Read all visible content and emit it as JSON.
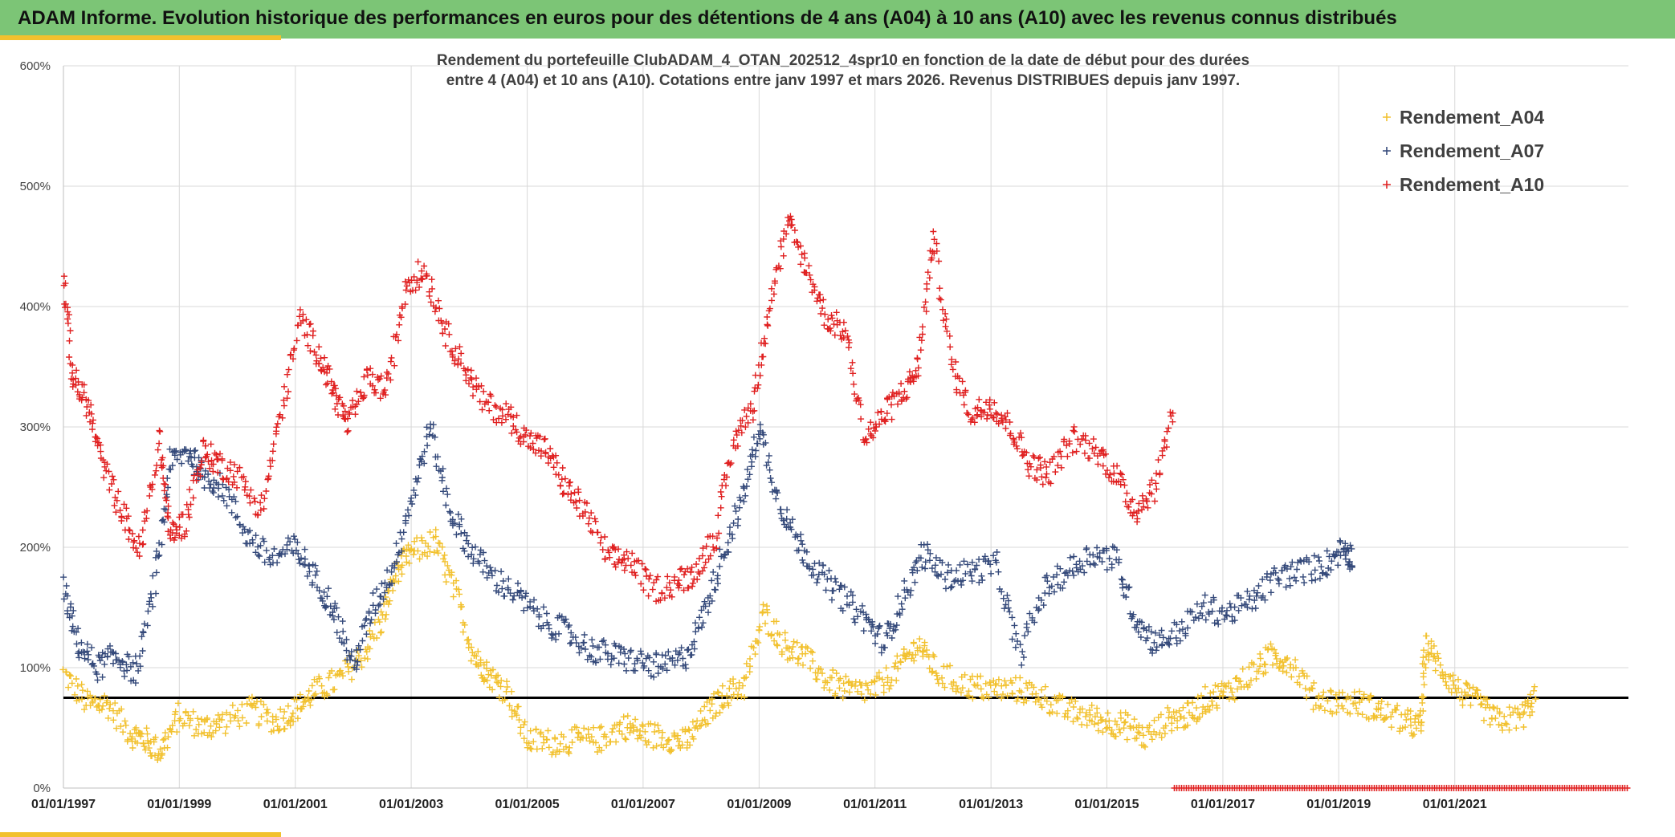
{
  "header": {
    "title": "ADAM Informe. Evolution historique des performances en euros pour des détentions de 4 ans (A04) à 10 ans (A10) avec les revenus connus distribués"
  },
  "chart_data": {
    "type": "scatter",
    "title_lines": [
      "Rendement du portefeuille ClubADAM_4_OTAN_202512_4spr10  en fonction de la date de début pour des durées",
      "entre 4 (A04) et 10 ans (A10). Cotations entre janv 1997 et mars 2026. Revenus DISTRIBUES depuis janv 1997."
    ],
    "xlabel": "",
    "ylabel": "",
    "x_range": [
      "1997-01-01",
      "2023-12-31"
    ],
    "ylim": [
      0,
      600
    ],
    "y_ticks": [
      "0%",
      "100%",
      "200%",
      "300%",
      "400%",
      "500%",
      "600%"
    ],
    "x_ticks": [
      "01/01/1997",
      "01/01/1999",
      "01/01/2001",
      "01/01/2003",
      "01/01/2005",
      "01/01/2007",
      "01/01/2009",
      "01/01/2011",
      "01/01/2013",
      "01/01/2015",
      "01/01/2017",
      "01/01/2019",
      "01/01/2021"
    ],
    "grid": true,
    "legend_position": "top-right",
    "reference_line": {
      "y": 75,
      "color": "#000000"
    },
    "marker": "+",
    "series": [
      {
        "name": "Rendement_A04",
        "color": "#f2c12e",
        "x_end": "2022-06-01",
        "x": [
          "1997-01",
          "1997-06",
          "1997-10",
          "1998-03",
          "1998-06",
          "1998-09",
          "1999-01",
          "1999-06",
          "1999-10",
          "2000-04",
          "2000-09",
          "2001-01",
          "2001-05",
          "2001-10",
          "2002-03",
          "2002-07",
          "2002-10",
          "2003-01",
          "2003-06",
          "2003-10",
          "2004-02",
          "2004-05",
          "2004-09",
          "2005-01",
          "2005-06",
          "2005-11",
          "2006-04",
          "2006-09",
          "2007-01",
          "2007-06",
          "2007-10",
          "2008-02",
          "2008-06",
          "2008-10",
          "2009-02",
          "2009-06",
          "2009-10",
          "2010-03",
          "2010-08",
          "2011-01",
          "2011-06",
          "2011-10",
          "2012-02",
          "2012-08",
          "2013-01",
          "2013-06",
          "2013-11",
          "2014-04",
          "2014-09",
          "2015-01",
          "2015-05",
          "2015-09",
          "2016-02",
          "2016-06",
          "2016-10",
          "2017-02",
          "2017-07",
          "2017-11",
          "2018-03",
          "2018-08",
          "2019-01",
          "2019-06",
          "2019-10",
          "2020-03",
          "2020-06",
          "2020-07",
          "2020-10",
          "2021-02",
          "2021-06",
          "2021-10",
          "2022-03",
          "2022-06"
        ],
        "y": [
          95,
          70,
          70,
          45,
          40,
          30,
          60,
          50,
          55,
          65,
          55,
          65,
          80,
          90,
          110,
          140,
          180,
          195,
          205,
          165,
          110,
          95,
          80,
          40,
          38,
          40,
          40,
          52,
          45,
          42,
          38,
          60,
          78,
          85,
          145,
          120,
          110,
          90,
          80,
          82,
          100,
          120,
          95,
          85,
          82,
          82,
          78,
          65,
          60,
          55,
          52,
          42,
          58,
          60,
          75,
          80,
          95,
          110,
          105,
          75,
          72,
          70,
          63,
          55,
          50,
          120,
          100,
          80,
          70,
          55,
          60,
          78
        ]
      },
      {
        "name": "Rendement_A07",
        "color": "#34497a",
        "x_end": "2019-04-01",
        "x": [
          "1997-01",
          "1997-04",
          "1997-08",
          "1997-12",
          "1998-04",
          "1998-08",
          "1998-11",
          "1999-03",
          "1999-06",
          "1999-10",
          "2000-03",
          "2000-08",
          "2001-01",
          "2001-05",
          "2001-09",
          "2002-01",
          "2002-05",
          "2002-09",
          "2003-01",
          "2003-05",
          "2003-09",
          "2004-01",
          "2004-06",
          "2004-11",
          "2005-04",
          "2005-09",
          "2006-02",
          "2006-07",
          "2006-12",
          "2007-05",
          "2007-10",
          "2008-02",
          "2008-06",
          "2008-10",
          "2009-01",
          "2009-05",
          "2009-09",
          "2010-01",
          "2010-06",
          "2010-11",
          "2011-03",
          "2011-07",
          "2011-11",
          "2012-04",
          "2012-09",
          "2013-02",
          "2013-07",
          "2013-12",
          "2014-05",
          "2014-10",
          "2015-03",
          "2015-07",
          "2015-11",
          "2016-04",
          "2016-09",
          "2017-02",
          "2017-07",
          "2017-12",
          "2018-05",
          "2018-10",
          "2019-02",
          "2019-04"
        ],
        "y": [
          165,
          120,
          100,
          110,
          95,
          170,
          270,
          280,
          260,
          250,
          210,
          190,
          200,
          175,
          150,
          100,
          150,
          180,
          240,
          300,
          230,
          200,
          175,
          160,
          140,
          130,
          115,
          110,
          105,
          100,
          110,
          150,
          200,
          245,
          300,
          240,
          205,
          180,
          160,
          140,
          120,
          160,
          195,
          175,
          180,
          185,
          110,
          165,
          180,
          195,
          190,
          140,
          120,
          130,
          150,
          145,
          155,
          175,
          180,
          185,
          200,
          190
        ]
      },
      {
        "name": "Rendement_A10",
        "color": "#e02020",
        "x_end": "2016-03-01",
        "x": [
          "1997-01",
          "1997-03",
          "1997-06",
          "1997-09",
          "1998-01",
          "1998-05",
          "1998-09",
          "1998-11",
          "1999-02",
          "1999-06",
          "1999-09",
          "2000-01",
          "2000-06",
          "2000-10",
          "2001-02",
          "2001-06",
          "2001-09",
          "2001-12",
          "2002-04",
          "2002-08",
          "2002-12",
          "2003-04",
          "2003-08",
          "2003-12",
          "2004-04",
          "2004-09",
          "2005-01",
          "2005-05",
          "2005-09",
          "2006-01",
          "2006-06",
          "2006-10",
          "2007-03",
          "2007-08",
          "2007-12",
          "2008-04",
          "2008-08",
          "2008-12",
          "2009-03",
          "2009-07",
          "2009-11",
          "2010-03",
          "2010-07",
          "2010-11",
          "2011-03",
          "2011-07",
          "2011-10",
          "2012-01",
          "2012-05",
          "2012-09",
          "2013-01",
          "2013-05",
          "2013-09",
          "2014-01",
          "2014-06",
          "2014-11",
          "2015-03",
          "2015-07",
          "2015-11",
          "2016-03"
        ],
        "y": [
          425,
          340,
          320,
          270,
          230,
          195,
          290,
          210,
          220,
          280,
          270,
          260,
          230,
          310,
          390,
          360,
          330,
          300,
          340,
          330,
          420,
          430,
          380,
          350,
          320,
          310,
          290,
          280,
          250,
          230,
          190,
          190,
          165,
          170,
          180,
          210,
          290,
          320,
          400,
          470,
          430,
          390,
          380,
          290,
          310,
          330,
          350,
          460,
          350,
          310,
          320,
          300,
          270,
          260,
          290,
          280,
          260,
          230,
          250,
          320
        ]
      }
    ]
  }
}
